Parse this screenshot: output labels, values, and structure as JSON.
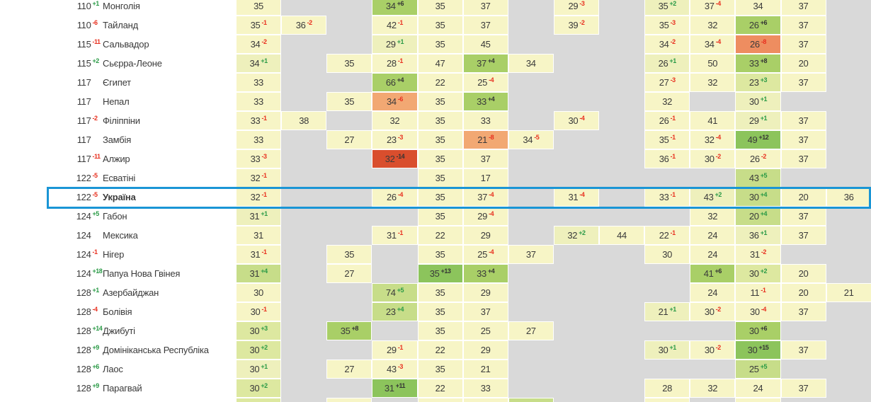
{
  "table": {
    "language": "uk",
    "highlighted_country": "Україна",
    "value_columns": 14,
    "rows": [
      {
        "rank": "110",
        "rank_delta": "+1",
        "country": "Монголія",
        "cells": {
          "1": {
            "v": "35"
          },
          "4": {
            "v": "34",
            "d": "+6",
            "c": "p4"
          },
          "5": {
            "v": "35"
          },
          "6": {
            "v": "37"
          },
          "8": {
            "v": "29",
            "d": "-3"
          },
          "10": {
            "v": "35",
            "d": "+2",
            "c": "p1"
          },
          "11": {
            "v": "37",
            "d": "-4"
          },
          "12": {
            "v": "34"
          },
          "13": {
            "v": "37"
          }
        }
      },
      {
        "rank": "110",
        "rank_delta": "-6",
        "country": "Тайланд",
        "cells": {
          "1": {
            "v": "35",
            "d": "-1"
          },
          "2": {
            "v": "36",
            "d": "-2"
          },
          "4": {
            "v": "42",
            "d": "-1"
          },
          "5": {
            "v": "35"
          },
          "6": {
            "v": "37"
          },
          "8": {
            "v": "39",
            "d": "-2"
          },
          "10": {
            "v": "35",
            "d": "-3"
          },
          "11": {
            "v": "32"
          },
          "12": {
            "v": "26",
            "d": "+6",
            "c": "p4"
          },
          "13": {
            "v": "37"
          }
        }
      },
      {
        "rank": "115",
        "rank_delta": "-11",
        "country": "Сальвадор",
        "cells": {
          "1": {
            "v": "34",
            "d": "-2"
          },
          "4": {
            "v": "29",
            "d": "+1",
            "c": "p1"
          },
          "5": {
            "v": "35"
          },
          "6": {
            "v": "45"
          },
          "10": {
            "v": "34",
            "d": "-2"
          },
          "11": {
            "v": "34",
            "d": "-4"
          },
          "12": {
            "v": "26",
            "d": "-8",
            "c": "n2b"
          },
          "13": {
            "v": "37"
          }
        }
      },
      {
        "rank": "115",
        "rank_delta": "+2",
        "country": "Сьєрра-Леоне",
        "cells": {
          "1": {
            "v": "34",
            "d": "+1",
            "c": "p1"
          },
          "3": {
            "v": "35"
          },
          "4": {
            "v": "28",
            "d": "-1"
          },
          "5": {
            "v": "47"
          },
          "6": {
            "v": "37",
            "d": "+4",
            "c": "p4"
          },
          "7": {
            "v": "34"
          },
          "10": {
            "v": "26",
            "d": "+1",
            "c": "p1"
          },
          "11": {
            "v": "50"
          },
          "12": {
            "v": "33",
            "d": "+8",
            "c": "p4"
          },
          "13": {
            "v": "20"
          }
        }
      },
      {
        "rank": "117",
        "rank_delta": "",
        "country": "Єгипет",
        "cells": {
          "1": {
            "v": "33"
          },
          "4": {
            "v": "66",
            "d": "+4",
            "c": "p4"
          },
          "5": {
            "v": "22"
          },
          "6": {
            "v": "25",
            "d": "-4"
          },
          "10": {
            "v": "27",
            "d": "-3"
          },
          "11": {
            "v": "32"
          },
          "12": {
            "v": "23",
            "d": "+3",
            "c": "p2"
          },
          "13": {
            "v": "37"
          }
        }
      },
      {
        "rank": "117",
        "rank_delta": "",
        "country": "Непал",
        "cells": {
          "1": {
            "v": "33"
          },
          "3": {
            "v": "35"
          },
          "4": {
            "v": "34",
            "d": "-6",
            "c": "n2"
          },
          "5": {
            "v": "35"
          },
          "6": {
            "v": "33",
            "d": "+4",
            "c": "p4"
          },
          "10": {
            "v": "32"
          },
          "12": {
            "v": "30",
            "d": "+1",
            "c": "p1"
          }
        }
      },
      {
        "rank": "117",
        "rank_delta": "-2",
        "country": "Філіппіни",
        "cells": {
          "1": {
            "v": "33",
            "d": "-1"
          },
          "2": {
            "v": "38"
          },
          "4": {
            "v": "32"
          },
          "5": {
            "v": "35"
          },
          "6": {
            "v": "33"
          },
          "8": {
            "v": "30",
            "d": "-4"
          },
          "10": {
            "v": "26",
            "d": "-1"
          },
          "11": {
            "v": "41"
          },
          "12": {
            "v": "29",
            "d": "+1",
            "c": "p1"
          },
          "13": {
            "v": "37"
          }
        }
      },
      {
        "rank": "117",
        "rank_delta": "",
        "country": "Замбія",
        "cells": {
          "1": {
            "v": "33"
          },
          "3": {
            "v": "27"
          },
          "4": {
            "v": "23",
            "d": "-3"
          },
          "5": {
            "v": "35"
          },
          "6": {
            "v": "21",
            "d": "-8",
            "c": "n2"
          },
          "7": {
            "v": "34",
            "d": "-5"
          },
          "10": {
            "v": "35",
            "d": "-1"
          },
          "11": {
            "v": "32",
            "d": "-4"
          },
          "12": {
            "v": "49",
            "d": "+12",
            "c": "p5"
          },
          "13": {
            "v": "37"
          }
        }
      },
      {
        "rank": "117",
        "rank_delta": "-11",
        "country": "Алжир",
        "cells": {
          "1": {
            "v": "33",
            "d": "-3"
          },
          "4": {
            "v": "32",
            "d": "-14",
            "c": "n3"
          },
          "5": {
            "v": "35"
          },
          "6": {
            "v": "37"
          },
          "10": {
            "v": "36",
            "d": "-1"
          },
          "11": {
            "v": "30",
            "d": "-2"
          },
          "12": {
            "v": "26",
            "d": "-2"
          },
          "13": {
            "v": "37"
          }
        }
      },
      {
        "rank": "122",
        "rank_delta": "-5",
        "country": "Есватіні",
        "cells": {
          "1": {
            "v": "32",
            "d": "-1"
          },
          "5": {
            "v": "35"
          },
          "6": {
            "v": "17"
          },
          "12": {
            "v": "43",
            "d": "+5",
            "c": "p3"
          }
        }
      },
      {
        "rank": "122",
        "rank_delta": "-5",
        "country": "Україна",
        "highlight": true,
        "bold": true,
        "cells": {
          "1": {
            "v": "32",
            "d": "-1"
          },
          "4": {
            "v": "26",
            "d": "-4"
          },
          "5": {
            "v": "35"
          },
          "6": {
            "v": "37",
            "d": "-4"
          },
          "8": {
            "v": "31",
            "d": "-4"
          },
          "10": {
            "v": "33",
            "d": "-1"
          },
          "11": {
            "v": "43",
            "d": "+2",
            "c": "p1"
          },
          "12": {
            "v": "30",
            "d": "+4",
            "c": "p3"
          },
          "13": {
            "v": "20"
          },
          "14": {
            "v": "36"
          }
        }
      },
      {
        "rank": "124",
        "rank_delta": "+5",
        "country": "Габон",
        "cells": {
          "1": {
            "v": "31",
            "d": "+1",
            "c": "p1"
          },
          "5": {
            "v": "35"
          },
          "6": {
            "v": "29",
            "d": "-4"
          },
          "11": {
            "v": "32"
          },
          "12": {
            "v": "20",
            "d": "+4",
            "c": "p3"
          },
          "13": {
            "v": "37"
          }
        }
      },
      {
        "rank": "124",
        "rank_delta": "",
        "country": "Мексика",
        "cells": {
          "1": {
            "v": "31"
          },
          "4": {
            "v": "31",
            "d": "-1"
          },
          "5": {
            "v": "22"
          },
          "6": {
            "v": "29"
          },
          "8": {
            "v": "32",
            "d": "+2",
            "c": "p1"
          },
          "9": {
            "v": "44"
          },
          "10": {
            "v": "22",
            "d": "-1"
          },
          "11": {
            "v": "24"
          },
          "12": {
            "v": "36",
            "d": "+1",
            "c": "p1"
          },
          "13": {
            "v": "37"
          }
        }
      },
      {
        "rank": "124",
        "rank_delta": "-1",
        "country": "Нігер",
        "cells": {
          "1": {
            "v": "31",
            "d": "-1"
          },
          "3": {
            "v": "35"
          },
          "5": {
            "v": "35"
          },
          "6": {
            "v": "25",
            "d": "-4"
          },
          "7": {
            "v": "37"
          },
          "10": {
            "v": "30"
          },
          "11": {
            "v": "24"
          },
          "12": {
            "v": "31",
            "d": "-2"
          }
        }
      },
      {
        "rank": "124",
        "rank_delta": "+18",
        "country": "Папуа Нова Гвінея",
        "cells": {
          "1": {
            "v": "31",
            "d": "+4",
            "c": "p3"
          },
          "3": {
            "v": "27"
          },
          "5": {
            "v": "35",
            "d": "+13",
            "c": "p5"
          },
          "6": {
            "v": "33",
            "d": "+4",
            "c": "p4"
          },
          "11": {
            "v": "41",
            "d": "+6",
            "c": "p4"
          },
          "12": {
            "v": "30",
            "d": "+2",
            "c": "p2"
          },
          "13": {
            "v": "20"
          }
        }
      },
      {
        "rank": "128",
        "rank_delta": "+1",
        "country": "Азербайджан",
        "cells": {
          "1": {
            "v": "30"
          },
          "4": {
            "v": "74",
            "d": "+5",
            "c": "p3"
          },
          "5": {
            "v": "35"
          },
          "6": {
            "v": "29"
          },
          "11": {
            "v": "24"
          },
          "12": {
            "v": "11",
            "d": "-1"
          },
          "13": {
            "v": "20"
          },
          "14": {
            "v": "21"
          }
        }
      },
      {
        "rank": "128",
        "rank_delta": "-4",
        "country": "Болівія",
        "cells": {
          "1": {
            "v": "30",
            "d": "-1"
          },
          "4": {
            "v": "23",
            "d": "+4",
            "c": "p3"
          },
          "5": {
            "v": "35"
          },
          "6": {
            "v": "37"
          },
          "10": {
            "v": "21",
            "d": "+1",
            "c": "p1"
          },
          "11": {
            "v": "30",
            "d": "-2"
          },
          "12": {
            "v": "30",
            "d": "-4"
          },
          "13": {
            "v": "37"
          }
        }
      },
      {
        "rank": "128",
        "rank_delta": "+14",
        "country": "Джибуті",
        "cells": {
          "1": {
            "v": "30",
            "d": "+3",
            "c": "p2"
          },
          "3": {
            "v": "35",
            "d": "+8",
            "c": "p4"
          },
          "5": {
            "v": "35"
          },
          "6": {
            "v": "25"
          },
          "7": {
            "v": "27"
          },
          "12": {
            "v": "30",
            "d": "+6",
            "c": "p4"
          }
        }
      },
      {
        "rank": "128",
        "rank_delta": "+9",
        "country": "Домініканська Республіка",
        "cells": {
          "1": {
            "v": "30",
            "d": "+2",
            "c": "p2"
          },
          "4": {
            "v": "29",
            "d": "-1"
          },
          "5": {
            "v": "22"
          },
          "6": {
            "v": "29"
          },
          "10": {
            "v": "30",
            "d": "+1",
            "c": "p1"
          },
          "11": {
            "v": "30",
            "d": "-2"
          },
          "12": {
            "v": "30",
            "d": "+15",
            "c": "p5"
          },
          "13": {
            "v": "37"
          }
        }
      },
      {
        "rank": "128",
        "rank_delta": "+6",
        "country": "Лаос",
        "cells": {
          "1": {
            "v": "30",
            "d": "+1",
            "c": "p1"
          },
          "3": {
            "v": "27"
          },
          "4": {
            "v": "43",
            "d": "-3"
          },
          "5": {
            "v": "35"
          },
          "6": {
            "v": "21"
          },
          "12": {
            "v": "25",
            "d": "+5",
            "c": "p3"
          }
        }
      },
      {
        "rank": "128",
        "rank_delta": "+9",
        "country": "Парагвай",
        "cells": {
          "1": {
            "v": "30",
            "d": "+2",
            "c": "p2"
          },
          "4": {
            "v": "31",
            "d": "+11",
            "c": "p5"
          },
          "5": {
            "v": "22"
          },
          "6": {
            "v": "33"
          },
          "10": {
            "v": "28"
          },
          "11": {
            "v": "32"
          },
          "12": {
            "v": "24"
          },
          "13": {
            "v": "37"
          }
        }
      },
      {
        "rank": "",
        "rank_delta": "",
        "country": "",
        "partial": true,
        "cells": {
          "1": {
            "v": "",
            "c": "p2"
          },
          "3": {
            "v": ""
          },
          "5": {
            "v": ""
          },
          "6": {
            "v": ""
          },
          "7": {
            "v": "",
            "c": "p3"
          },
          "10": {
            "v": ""
          },
          "12": {
            "v": ""
          }
        }
      }
    ]
  },
  "palette": {
    "yellow": "#f7f5c6",
    "p1": "#eef0bc",
    "p2": "#dde8a0",
    "p3": "#c7dd89",
    "p4": "#a9cf67",
    "p5": "#8cc45c",
    "n2": "#f2a873",
    "n2b": "#ee8d60",
    "n3": "#d94e2d",
    "gray": "#d9d9d9",
    "background": "#ffffff"
  },
  "colors": {
    "text": "#3a3a3a",
    "sup_positive": "#2a9a46",
    "sup_negative": "#e8301f",
    "sup_on_dark": "#333333",
    "highlight_border": "#1a95d5"
  }
}
